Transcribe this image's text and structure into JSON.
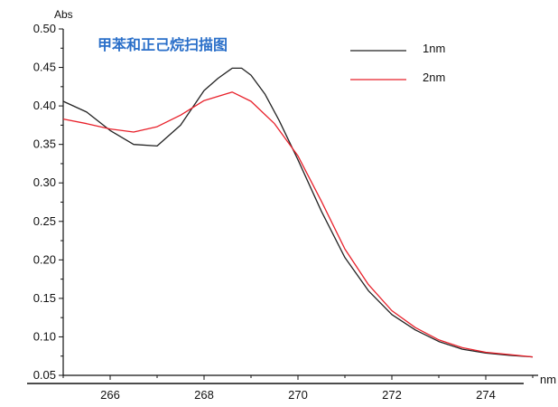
{
  "chart_data": {
    "type": "line",
    "title": "甲苯和正己烷扫描图",
    "xlabel": "nm",
    "ylabel": "Abs",
    "xlim": [
      265,
      275
    ],
    "ylim": [
      0.05,
      0.5
    ],
    "xticks": [
      266,
      268,
      270,
      272,
      274
    ],
    "xtick_labels": [
      "266",
      "268",
      "270",
      "272",
      "274"
    ],
    "yticks": [
      0.05,
      0.1,
      0.15,
      0.2,
      0.25,
      0.3,
      0.35,
      0.4,
      0.45,
      0.5
    ],
    "ytick_labels": [
      "0.05",
      "0.10",
      "0.15",
      "0.20",
      "0.25",
      "0.30",
      "0.35",
      "0.40",
      "0.45",
      "0.50"
    ],
    "grid": false,
    "legend_position": "top-right",
    "series": [
      {
        "name": "1nm",
        "color": "#222222",
        "points": [
          [
            265.0,
            0.406
          ],
          [
            265.5,
            0.392
          ],
          [
            266.0,
            0.368
          ],
          [
            266.5,
            0.35
          ],
          [
            267.0,
            0.348
          ],
          [
            267.5,
            0.375
          ],
          [
            268.0,
            0.42
          ],
          [
            268.3,
            0.436
          ],
          [
            268.6,
            0.449
          ],
          [
            268.8,
            0.449
          ],
          [
            269.0,
            0.44
          ],
          [
            269.3,
            0.415
          ],
          [
            269.6,
            0.381
          ],
          [
            270.0,
            0.33
          ],
          [
            270.5,
            0.263
          ],
          [
            271.0,
            0.203
          ],
          [
            271.5,
            0.16
          ],
          [
            272.0,
            0.129
          ],
          [
            272.5,
            0.109
          ],
          [
            273.0,
            0.094
          ],
          [
            273.5,
            0.084
          ],
          [
            274.0,
            0.079
          ],
          [
            274.5,
            0.076
          ],
          [
            275.0,
            0.074
          ]
        ]
      },
      {
        "name": "2nm",
        "color": "#e8202a",
        "points": [
          [
            265.0,
            0.383
          ],
          [
            265.5,
            0.377
          ],
          [
            266.0,
            0.37
          ],
          [
            266.5,
            0.366
          ],
          [
            267.0,
            0.373
          ],
          [
            267.5,
            0.388
          ],
          [
            268.0,
            0.407
          ],
          [
            268.6,
            0.418
          ],
          [
            269.0,
            0.406
          ],
          [
            269.5,
            0.377
          ],
          [
            270.0,
            0.335
          ],
          [
            270.5,
            0.276
          ],
          [
            271.0,
            0.214
          ],
          [
            271.5,
            0.168
          ],
          [
            272.0,
            0.134
          ],
          [
            272.5,
            0.112
          ],
          [
            273.0,
            0.096
          ],
          [
            273.5,
            0.086
          ],
          [
            274.0,
            0.08
          ],
          [
            274.5,
            0.077
          ],
          [
            275.0,
            0.074
          ]
        ]
      }
    ]
  }
}
